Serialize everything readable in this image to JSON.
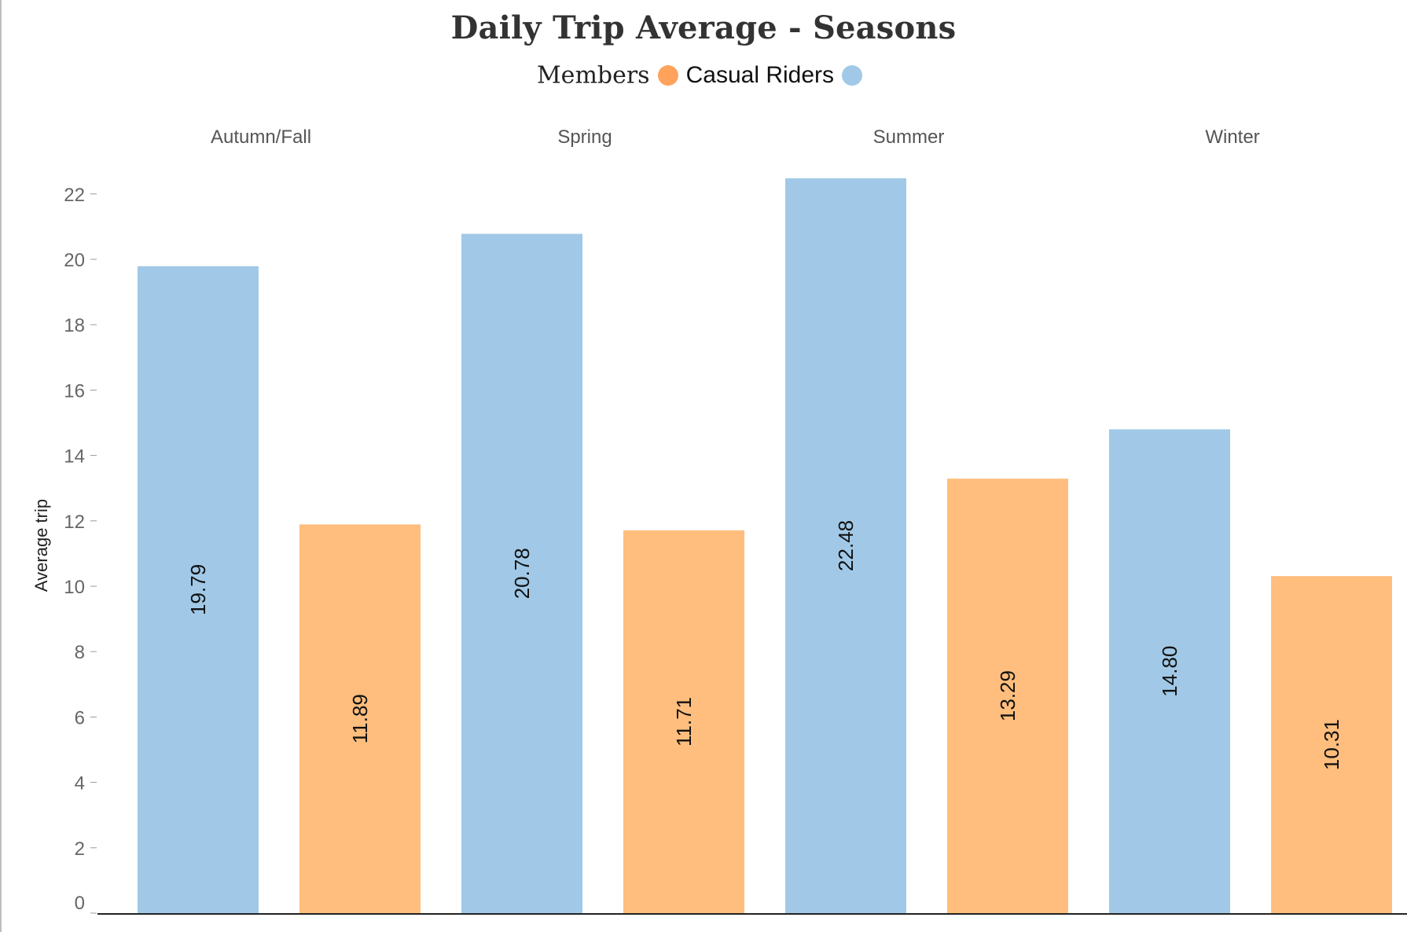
{
  "chart_data": {
    "type": "bar",
    "title": "Daily Trip Average - Seasons",
    "ylabel": "Average trip",
    "xlabel": "",
    "ylim": [
      0,
      22.5
    ],
    "yticks": [
      0,
      2,
      4,
      6,
      8,
      10,
      12,
      14,
      16,
      18,
      20,
      22
    ],
    "categories": [
      "Autumn/Fall",
      "Spring",
      "Summer",
      "Winter"
    ],
    "series": [
      {
        "name": "Casual Riders",
        "color": "#a1c9e7",
        "values": [
          19.79,
          20.78,
          22.48,
          14.8
        ],
        "labels": [
          "19.79",
          "20.78",
          "22.48",
          "14.80"
        ]
      },
      {
        "name": "Members",
        "color": "#ffbe7d",
        "values": [
          11.89,
          11.71,
          13.29,
          10.31
        ],
        "labels": [
          "11.89",
          "11.71",
          "13.29",
          "10.31"
        ]
      }
    ],
    "legend": {
      "placement": "top-center",
      "items": [
        {
          "label": "Members",
          "color": "#ffa35c"
        },
        {
          "label": "Casual Riders",
          "color": "#a1c9e7"
        }
      ]
    },
    "grid": false
  }
}
